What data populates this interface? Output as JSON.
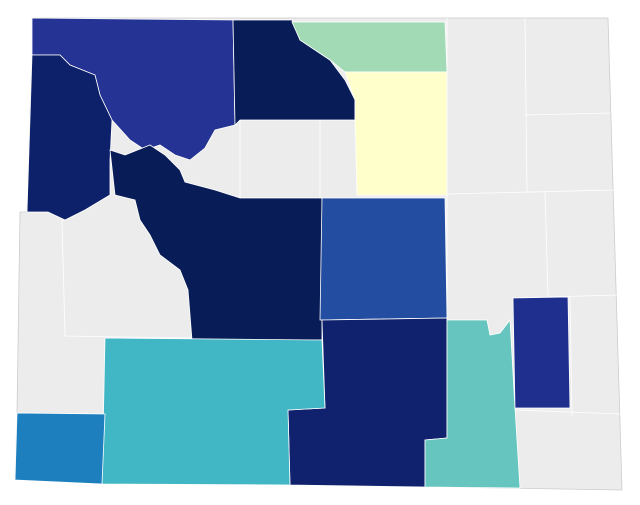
{
  "map": {
    "background": "#ececec",
    "regions": [
      {
        "color": "#253494"
      },
      {
        "color": "#081d58"
      },
      {
        "color": "#a1dab4"
      },
      {
        "color": "#ffffcc"
      },
      {
        "color": "#0c2169"
      },
      {
        "color": "#081d58"
      },
      {
        "color": "#234da0"
      },
      {
        "color": "#10226e"
      },
      {
        "color": "#41b6c4"
      },
      {
        "color": "#1d7fbe"
      },
      {
        "color": "#66c5be"
      },
      {
        "color": "#1f2f8e"
      }
    ]
  }
}
